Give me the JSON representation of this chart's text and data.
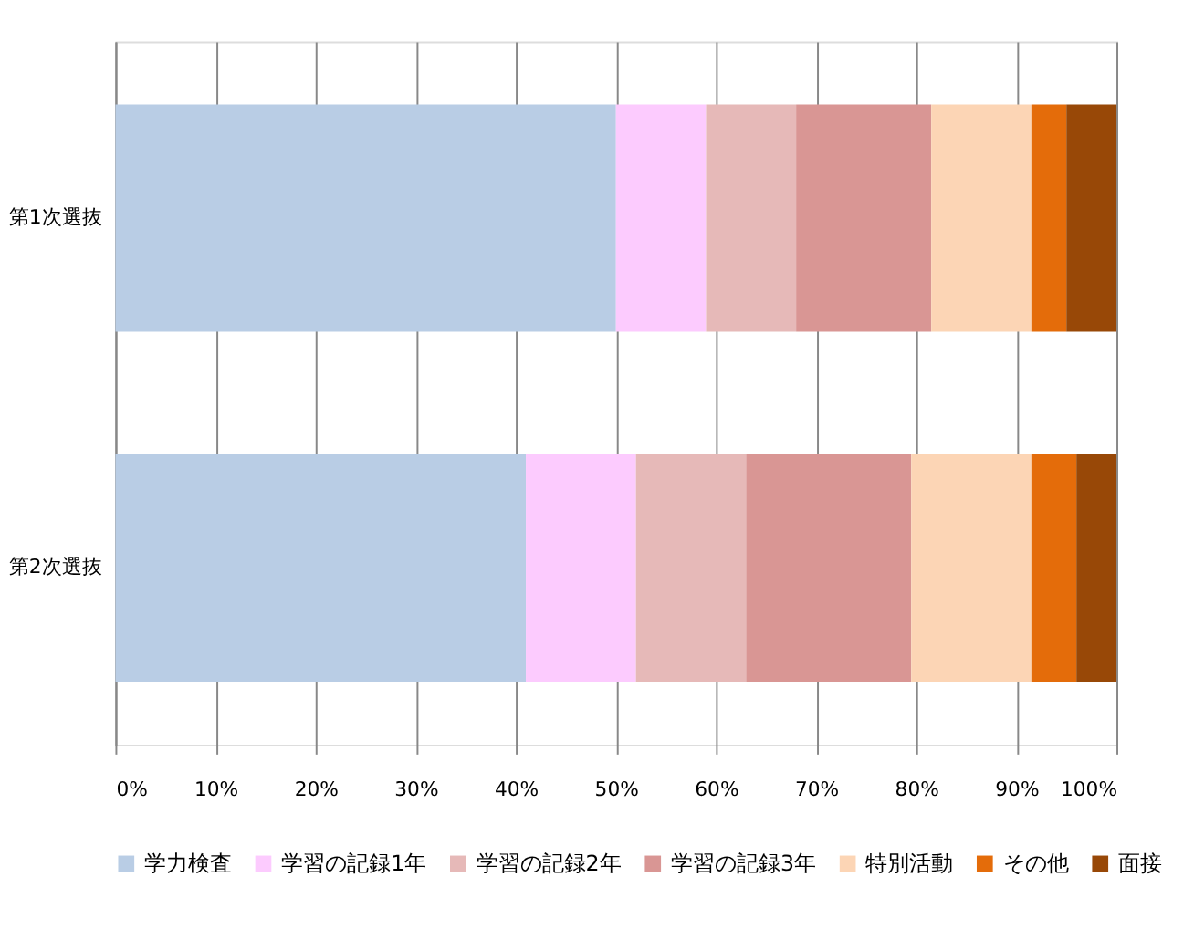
{
  "chart_data": {
    "type": "bar",
    "orientation": "horizontal",
    "stacked": true,
    "categories": [
      "第1次選抜",
      "第2次選抜"
    ],
    "series": [
      {
        "name": "学力検査",
        "color": "#b9cde5",
        "values": [
          50,
          41
        ]
      },
      {
        "name": "学習の記録1年",
        "color": "#fccbfe",
        "values": [
          9,
          11
        ]
      },
      {
        "name": "学習の記録2年",
        "color": "#e6b9b8",
        "values": [
          9,
          11
        ]
      },
      {
        "name": "学習の記録3年",
        "color": "#d99694",
        "values": [
          13.5,
          16.5
        ]
      },
      {
        "name": "特別活動",
        "color": "#fcd5b5",
        "values": [
          10,
          12
        ]
      },
      {
        "name": "その他",
        "color": "#e46c0a",
        "values": [
          3.5,
          4.5
        ]
      },
      {
        "name": "面接",
        "color": "#984807",
        "values": [
          5,
          4
        ]
      }
    ],
    "xlim": [
      0,
      100
    ],
    "xticks": [
      {
        "value": 0,
        "label": "0%"
      },
      {
        "value": 10,
        "label": "10%"
      },
      {
        "value": 20,
        "label": "20%"
      },
      {
        "value": 30,
        "label": "30%"
      },
      {
        "value": 40,
        "label": "40%"
      },
      {
        "value": 50,
        "label": "50%"
      },
      {
        "value": 60,
        "label": "60%"
      },
      {
        "value": 70,
        "label": "70%"
      },
      {
        "value": 80,
        "label": "80%"
      },
      {
        "value": 90,
        "label": "90%"
      },
      {
        "value": 100,
        "label": "100%"
      }
    ],
    "grid": "x",
    "legend": "bottom"
  }
}
